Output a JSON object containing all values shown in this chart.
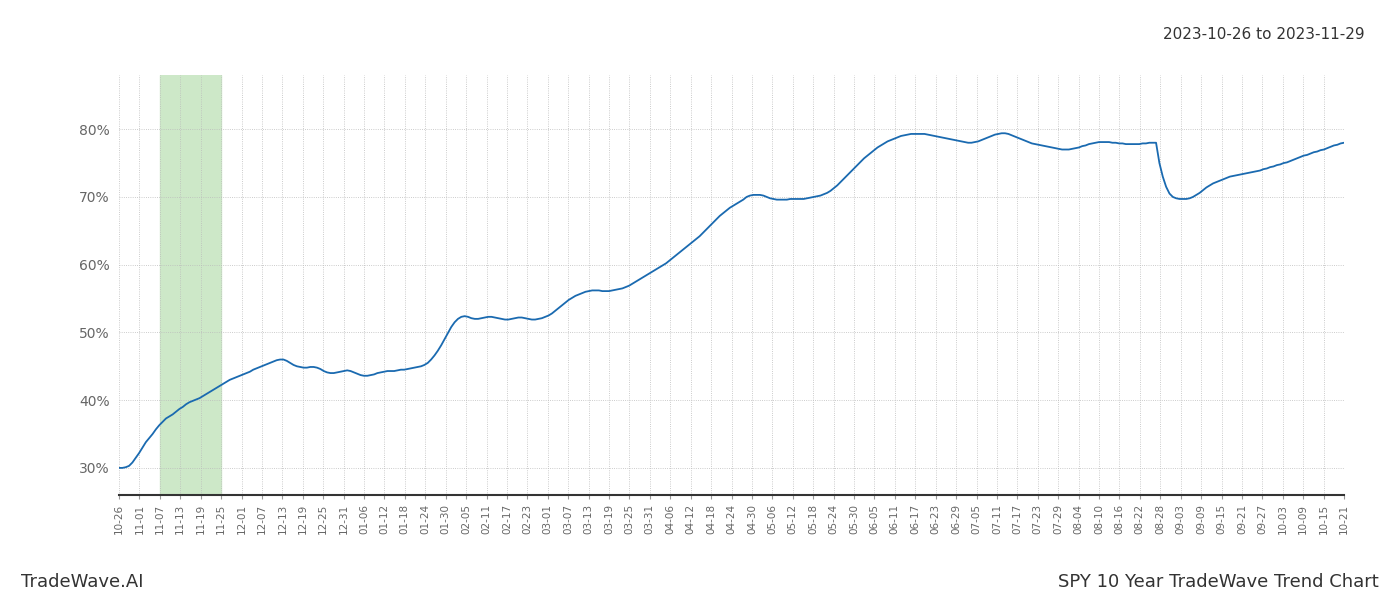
{
  "title_date_range": "2023-10-26 to 2023-11-29",
  "footer_left": "TradeWave.AI",
  "footer_right": "SPY 10 Year TradeWave Trend Chart",
  "highlight_color": "#cde8c8",
  "line_color": "#1a6ab0",
  "line_width": 1.3,
  "y_ticks": [
    0.3,
    0.4,
    0.5,
    0.6,
    0.7,
    0.8
  ],
  "y_tick_labels": [
    "30%",
    "40%",
    "50%",
    "60%",
    "70%",
    "80%"
  ],
  "ylim": [
    0.26,
    0.88
  ],
  "x_tick_labels": [
    "10-26",
    "11-01",
    "11-07",
    "11-13",
    "11-19",
    "11-25",
    "12-01",
    "12-07",
    "12-13",
    "12-19",
    "12-25",
    "12-31",
    "01-06",
    "01-12",
    "01-18",
    "01-24",
    "01-30",
    "02-05",
    "02-11",
    "02-17",
    "02-23",
    "03-01",
    "03-07",
    "03-13",
    "03-19",
    "03-25",
    "03-31",
    "04-06",
    "04-12",
    "04-18",
    "04-24",
    "04-30",
    "05-06",
    "05-12",
    "05-18",
    "05-24",
    "05-30",
    "06-05",
    "06-11",
    "06-17",
    "06-23",
    "06-29",
    "07-05",
    "07-11",
    "07-17",
    "07-23",
    "07-29",
    "08-04",
    "08-10",
    "08-16",
    "08-22",
    "08-28",
    "09-03",
    "09-09",
    "09-15",
    "09-21",
    "09-27",
    "10-03",
    "10-09",
    "10-15",
    "10-21"
  ],
  "highlight_start_label": "11-07",
  "highlight_end_label": "11-25",
  "background_color": "#ffffff",
  "grid_color": "#bbbbbb",
  "values": [
    0.3,
    0.3,
    0.301,
    0.303,
    0.308,
    0.315,
    0.322,
    0.33,
    0.338,
    0.344,
    0.35,
    0.357,
    0.363,
    0.368,
    0.373,
    0.376,
    0.379,
    0.383,
    0.387,
    0.39,
    0.394,
    0.397,
    0.399,
    0.401,
    0.403,
    0.406,
    0.409,
    0.412,
    0.415,
    0.418,
    0.421,
    0.424,
    0.427,
    0.43,
    0.432,
    0.434,
    0.436,
    0.438,
    0.44,
    0.442,
    0.445,
    0.447,
    0.449,
    0.451,
    0.453,
    0.455,
    0.457,
    0.459,
    0.46,
    0.46,
    0.458,
    0.455,
    0.452,
    0.45,
    0.449,
    0.448,
    0.448,
    0.449,
    0.449,
    0.448,
    0.446,
    0.443,
    0.441,
    0.44,
    0.44,
    0.441,
    0.442,
    0.443,
    0.444,
    0.443,
    0.441,
    0.439,
    0.437,
    0.436,
    0.436,
    0.437,
    0.438,
    0.44,
    0.441,
    0.442,
    0.443,
    0.443,
    0.443,
    0.444,
    0.445,
    0.445,
    0.446,
    0.447,
    0.448,
    0.449,
    0.45,
    0.452,
    0.455,
    0.46,
    0.466,
    0.473,
    0.481,
    0.49,
    0.499,
    0.508,
    0.515,
    0.52,
    0.523,
    0.524,
    0.523,
    0.521,
    0.52,
    0.52,
    0.521,
    0.522,
    0.523,
    0.523,
    0.522,
    0.521,
    0.52,
    0.519,
    0.519,
    0.52,
    0.521,
    0.522,
    0.522,
    0.521,
    0.52,
    0.519,
    0.519,
    0.52,
    0.521,
    0.523,
    0.525,
    0.528,
    0.532,
    0.536,
    0.54,
    0.544,
    0.548,
    0.551,
    0.554,
    0.556,
    0.558,
    0.56,
    0.561,
    0.562,
    0.562,
    0.562,
    0.561,
    0.561,
    0.561,
    0.562,
    0.563,
    0.564,
    0.565,
    0.567,
    0.569,
    0.572,
    0.575,
    0.578,
    0.581,
    0.584,
    0.587,
    0.59,
    0.593,
    0.596,
    0.599,
    0.602,
    0.606,
    0.61,
    0.614,
    0.618,
    0.622,
    0.626,
    0.63,
    0.634,
    0.638,
    0.642,
    0.647,
    0.652,
    0.657,
    0.662,
    0.667,
    0.672,
    0.676,
    0.68,
    0.684,
    0.687,
    0.69,
    0.693,
    0.696,
    0.7,
    0.702,
    0.703,
    0.703,
    0.703,
    0.702,
    0.7,
    0.698,
    0.697,
    0.696,
    0.696,
    0.696,
    0.696,
    0.697,
    0.697,
    0.697,
    0.697,
    0.697,
    0.698,
    0.699,
    0.7,
    0.701,
    0.702,
    0.704,
    0.706,
    0.709,
    0.713,
    0.717,
    0.722,
    0.727,
    0.732,
    0.737,
    0.742,
    0.747,
    0.752,
    0.757,
    0.761,
    0.765,
    0.769,
    0.773,
    0.776,
    0.779,
    0.782,
    0.784,
    0.786,
    0.788,
    0.79,
    0.791,
    0.792,
    0.793,
    0.793,
    0.793,
    0.793,
    0.793,
    0.792,
    0.791,
    0.79,
    0.789,
    0.788,
    0.787,
    0.786,
    0.785,
    0.784,
    0.783,
    0.782,
    0.781,
    0.78,
    0.78,
    0.781,
    0.782,
    0.784,
    0.786,
    0.788,
    0.79,
    0.792,
    0.793,
    0.794,
    0.794,
    0.793,
    0.791,
    0.789,
    0.787,
    0.785,
    0.783,
    0.781,
    0.779,
    0.778,
    0.777,
    0.776,
    0.775,
    0.774,
    0.773,
    0.772,
    0.771,
    0.77,
    0.77,
    0.77,
    0.771,
    0.772,
    0.773,
    0.775,
    0.776,
    0.778,
    0.779,
    0.78,
    0.781,
    0.781,
    0.781,
    0.781,
    0.78,
    0.78,
    0.779,
    0.779,
    0.778,
    0.778,
    0.778,
    0.778,
    0.778,
    0.779,
    0.779,
    0.78,
    0.78,
    0.78,
    0.75,
    0.73,
    0.715,
    0.705,
    0.7,
    0.698,
    0.697,
    0.697,
    0.697,
    0.698,
    0.7,
    0.703,
    0.706,
    0.71,
    0.714,
    0.717,
    0.72,
    0.722,
    0.724,
    0.726,
    0.728,
    0.73,
    0.731,
    0.732,
    0.733,
    0.734,
    0.735,
    0.736,
    0.737,
    0.738,
    0.739,
    0.741,
    0.742,
    0.744,
    0.745,
    0.747,
    0.748,
    0.75,
    0.751,
    0.753,
    0.755,
    0.757,
    0.759,
    0.761,
    0.762,
    0.764,
    0.766,
    0.767,
    0.769,
    0.77,
    0.772,
    0.774,
    0.776,
    0.777,
    0.779,
    0.78
  ]
}
